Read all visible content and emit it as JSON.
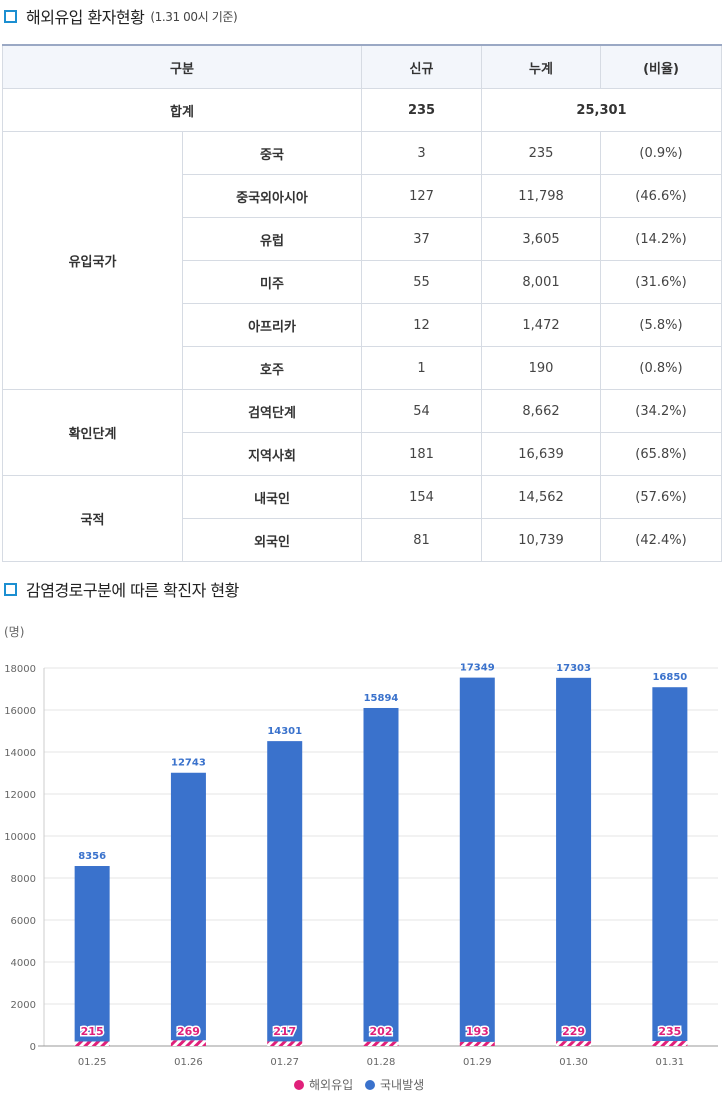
{
  "section1": {
    "title": "해외유입 환자현황",
    "subtitle": "(1.31 00시 기준)"
  },
  "table": {
    "headers": [
      "구분",
      "신규",
      "누계",
      "(비율)"
    ],
    "total": {
      "label": "합계",
      "new": "235",
      "cumulative": "25,301"
    },
    "groups": [
      {
        "label": "유입국가",
        "rows": [
          {
            "name": "중국",
            "new": "3",
            "cum": "235",
            "ratio": "(0.9%)"
          },
          {
            "name": "중국외아시아",
            "new": "127",
            "cum": "11,798",
            "ratio": "(46.6%)"
          },
          {
            "name": "유럽",
            "new": "37",
            "cum": "3,605",
            "ratio": "(14.2%)"
          },
          {
            "name": "미주",
            "new": "55",
            "cum": "8,001",
            "ratio": "(31.6%)"
          },
          {
            "name": "아프리카",
            "new": "12",
            "cum": "1,472",
            "ratio": "(5.8%)"
          },
          {
            "name": "호주",
            "new": "1",
            "cum": "190",
            "ratio": "(0.8%)"
          }
        ]
      },
      {
        "label": "확인단계",
        "rows": [
          {
            "name": "검역단계",
            "new": "54",
            "cum": "8,662",
            "ratio": "(34.2%)"
          },
          {
            "name": "지역사회",
            "new": "181",
            "cum": "16,639",
            "ratio": "(65.8%)"
          }
        ]
      },
      {
        "label": "국적",
        "rows": [
          {
            "name": "내국인",
            "new": "154",
            "cum": "14,562",
            "ratio": "(57.6%)"
          },
          {
            "name": "외국인",
            "new": "81",
            "cum": "10,739",
            "ratio": "(42.4%)"
          }
        ]
      }
    ]
  },
  "section2": {
    "title": "감염경로구분에 따른 확진자 현황"
  },
  "chart_data": {
    "type": "bar",
    "stacked": true,
    "ylabel": "(명)",
    "ylim": [
      0,
      18000
    ],
    "yticks": [
      0,
      2000,
      4000,
      6000,
      8000,
      10000,
      12000,
      14000,
      16000,
      18000
    ],
    "grid": true,
    "legend_position": "bottom",
    "categories": [
      "01.25",
      "01.26",
      "01.27",
      "01.28",
      "01.29",
      "01.30",
      "01.31"
    ],
    "series": [
      {
        "name": "해외유입",
        "color": "#e0207a",
        "values": [
          215,
          269,
          217,
          202,
          193,
          229,
          235
        ]
      },
      {
        "name": "국내발생",
        "color": "#3a72cc",
        "values": [
          8356,
          12743,
          14301,
          15894,
          17349,
          17303,
          16850
        ]
      }
    ]
  }
}
